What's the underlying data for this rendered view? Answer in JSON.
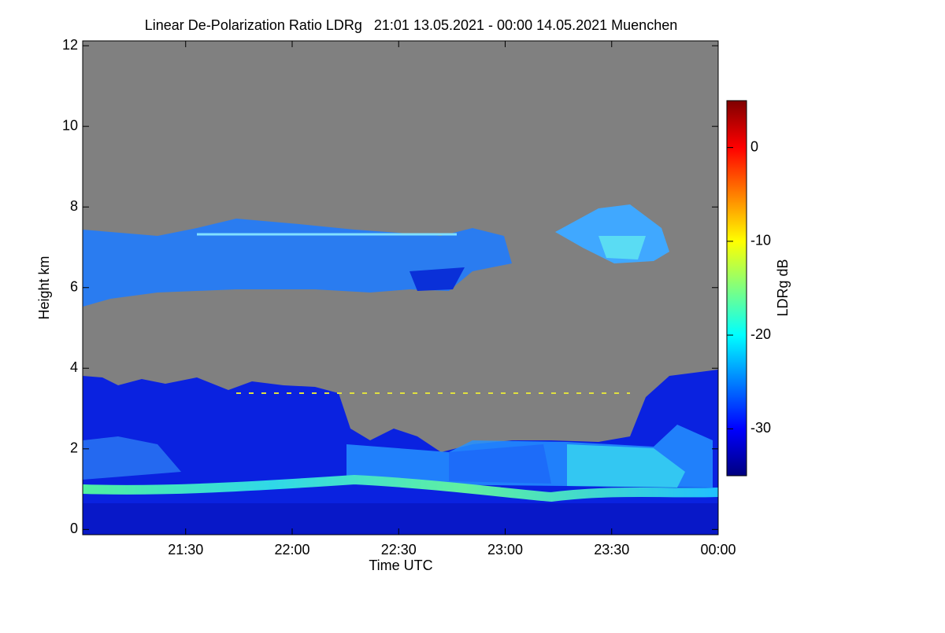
{
  "chart_data": {
    "type": "heatmap",
    "title": "Linear De-Polarization Ratio LDRg   21:01 13.05.2021 - 00:00 14.05.2021 Muenchen",
    "x_label": "Time UTC",
    "y_label": "Height km",
    "xlim": [
      1,
      180
    ],
    "xticks": [
      {
        "value": 30,
        "label": "21:30"
      },
      {
        "value": 60,
        "label": "22:00"
      },
      {
        "value": 90,
        "label": "22:30"
      },
      {
        "value": 120,
        "label": "23:00"
      },
      {
        "value": 150,
        "label": "23:30"
      },
      {
        "value": 180,
        "label": "00:00"
      }
    ],
    "ylim": [
      -0.13,
      12.12
    ],
    "yticks": [
      0,
      2,
      4,
      6,
      8,
      10,
      12
    ],
    "colorbar": {
      "label": "LDRg dB",
      "lim": [
        -35,
        5
      ],
      "ticks": [
        0,
        -10,
        -20,
        -30
      ],
      "colormap": "jet"
    },
    "background_color": "#808080"
  }
}
